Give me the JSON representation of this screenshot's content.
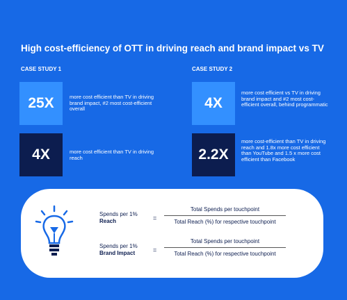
{
  "header": {
    "title": "High cost-efficiency of OTT in driving reach and brand impact vs TV"
  },
  "case_studies": [
    {
      "label": "CASE STUDY 1",
      "items": [
        {
          "stat": "25X",
          "text": "more cost efficient than TV in driving brand impact, #2 most cost-efficient overall"
        },
        {
          "stat": "4X",
          "text": "more cost efficient than TV in driving reach"
        }
      ]
    },
    {
      "label": "CASE STUDY 2",
      "items": [
        {
          "stat": "4X",
          "text": "more cost efficient vs TV in driving brand impact and #2 most cost-efficient overall, behind programmatic"
        },
        {
          "stat": "2.2X",
          "text": "more cost-efficient than TV in driving reach and 1.8x more cost efficient than YouTube and 1.5 x more cost efficient than Facebook"
        }
      ]
    }
  ],
  "formulas": [
    {
      "label": "Spends per 1%",
      "metric": "Reach",
      "equals": "=",
      "numerator": "Total Spends per touchpoint",
      "denominator": "Total Reach (%) for respective touchpoint"
    },
    {
      "label": "Spends per 1%",
      "metric": "Brand Impact",
      "equals": "=",
      "numerator": "Total Spends per touchpoint",
      "denominator": "Total Reach (%) for respective touchpoint"
    }
  ]
}
